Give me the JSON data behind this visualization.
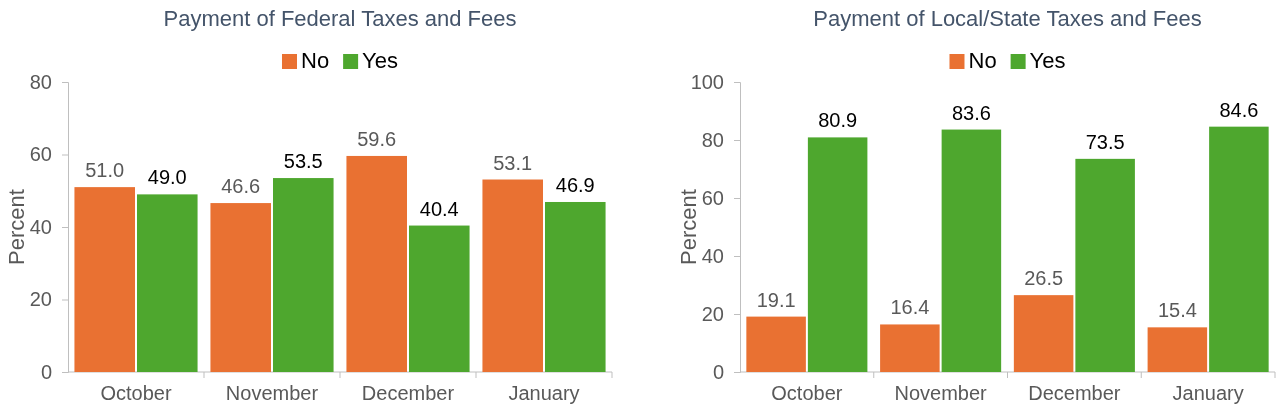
{
  "chart_data": [
    {
      "type": "bar",
      "title": "Payment of Federal Taxes and Fees",
      "ylabel": "Percent",
      "categories": [
        "October",
        "November",
        "December",
        "January"
      ],
      "ylim": [
        0,
        80
      ],
      "yticks": [
        0,
        20,
        40,
        60,
        80
      ],
      "legend": "top",
      "series": [
        {
          "name": "No",
          "color": "#e97132",
          "values": [
            51.0,
            46.6,
            59.6,
            53.1
          ],
          "value_labels": [
            "51.0",
            "46.6",
            "59.6",
            "53.1"
          ]
        },
        {
          "name": "Yes",
          "color": "#4ea72e",
          "values": [
            49.0,
            53.5,
            40.4,
            46.9
          ],
          "value_labels": [
            "49.0",
            "53.5",
            "40.4",
            "46.9"
          ]
        }
      ]
    },
    {
      "type": "bar",
      "title": "Payment of Local/State Taxes and Fees",
      "ylabel": "Percent",
      "categories": [
        "October",
        "November",
        "December",
        "January"
      ],
      "ylim": [
        0,
        100
      ],
      "yticks": [
        0,
        20,
        40,
        60,
        80,
        100
      ],
      "legend": "top",
      "series": [
        {
          "name": "No",
          "color": "#e97132",
          "values": [
            19.1,
            16.4,
            26.5,
            15.4
          ],
          "value_labels": [
            "19.1",
            "16.4",
            "26.5",
            "15.4"
          ]
        },
        {
          "name": "Yes",
          "color": "#4ea72e",
          "values": [
            80.9,
            83.6,
            73.5,
            84.6
          ],
          "value_labels": [
            "80.9",
            "83.6",
            "73.5",
            "84.6"
          ]
        }
      ]
    }
  ]
}
